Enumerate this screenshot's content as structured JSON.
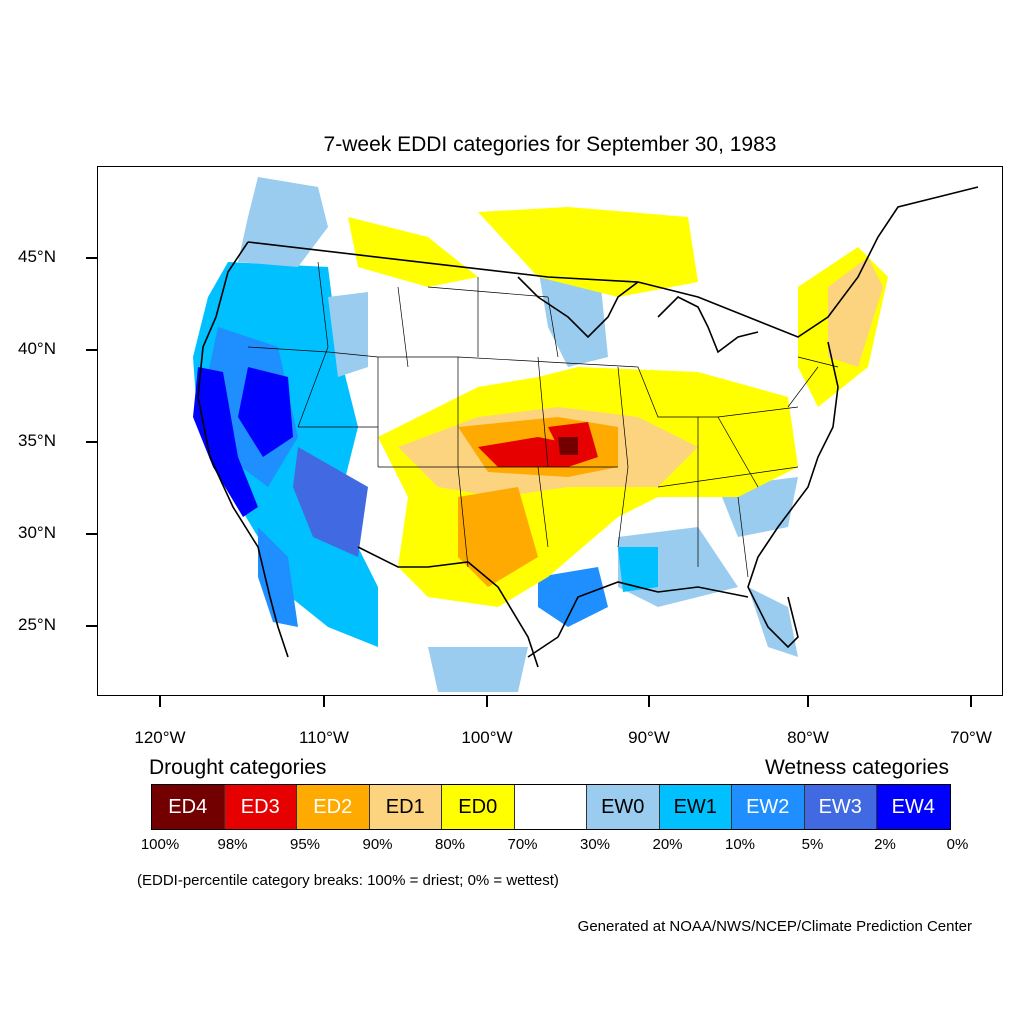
{
  "title": "7-week EDDI categories for September 30, 1983",
  "map": {
    "lat_labels": [
      "45°N",
      "40°N",
      "35°N",
      "30°N",
      "25°N"
    ],
    "lon_labels": [
      "120°W",
      "110°W",
      "100°W",
      "90°W",
      "80°W",
      "70°W"
    ]
  },
  "legend": {
    "drought_heading": "Drought categories",
    "wetness_heading": "Wetness categories",
    "categories": [
      {
        "label": "ED4",
        "color": "#730000",
        "text_color": "#ffffff"
      },
      {
        "label": "ED3",
        "color": "#e60000",
        "text_color": "#ffffff"
      },
      {
        "label": "ED2",
        "color": "#ffaa00",
        "text_color": "#ffffff"
      },
      {
        "label": "ED1",
        "color": "#fcd37f",
        "text_color": "#000000"
      },
      {
        "label": "ED0",
        "color": "#ffff00",
        "text_color": "#000000"
      },
      {
        "label": "",
        "color": "#ffffff",
        "text_color": "#000000"
      },
      {
        "label": "EW0",
        "color": "#99ccee",
        "text_color": "#000000"
      },
      {
        "label": "EW1",
        "color": "#00c0ff",
        "text_color": "#000000"
      },
      {
        "label": "EW2",
        "color": "#1f8fff",
        "text_color": "#ffffff"
      },
      {
        "label": "EW3",
        "color": "#4169e1",
        "text_color": "#ffffff"
      },
      {
        "label": "EW4",
        "color": "#0000ff",
        "text_color": "#ffffff"
      }
    ],
    "breaks": [
      "100%",
      "98%",
      "95%",
      "90%",
      "80%",
      "70%",
      "30%",
      "20%",
      "10%",
      "5%",
      "2%",
      "0%"
    ],
    "note": "(EDDI-percentile category breaks: 100% = driest; 0% = wettest)"
  },
  "credit": "Generated at NOAA/NWS/NCEP/Climate Prediction Center"
}
